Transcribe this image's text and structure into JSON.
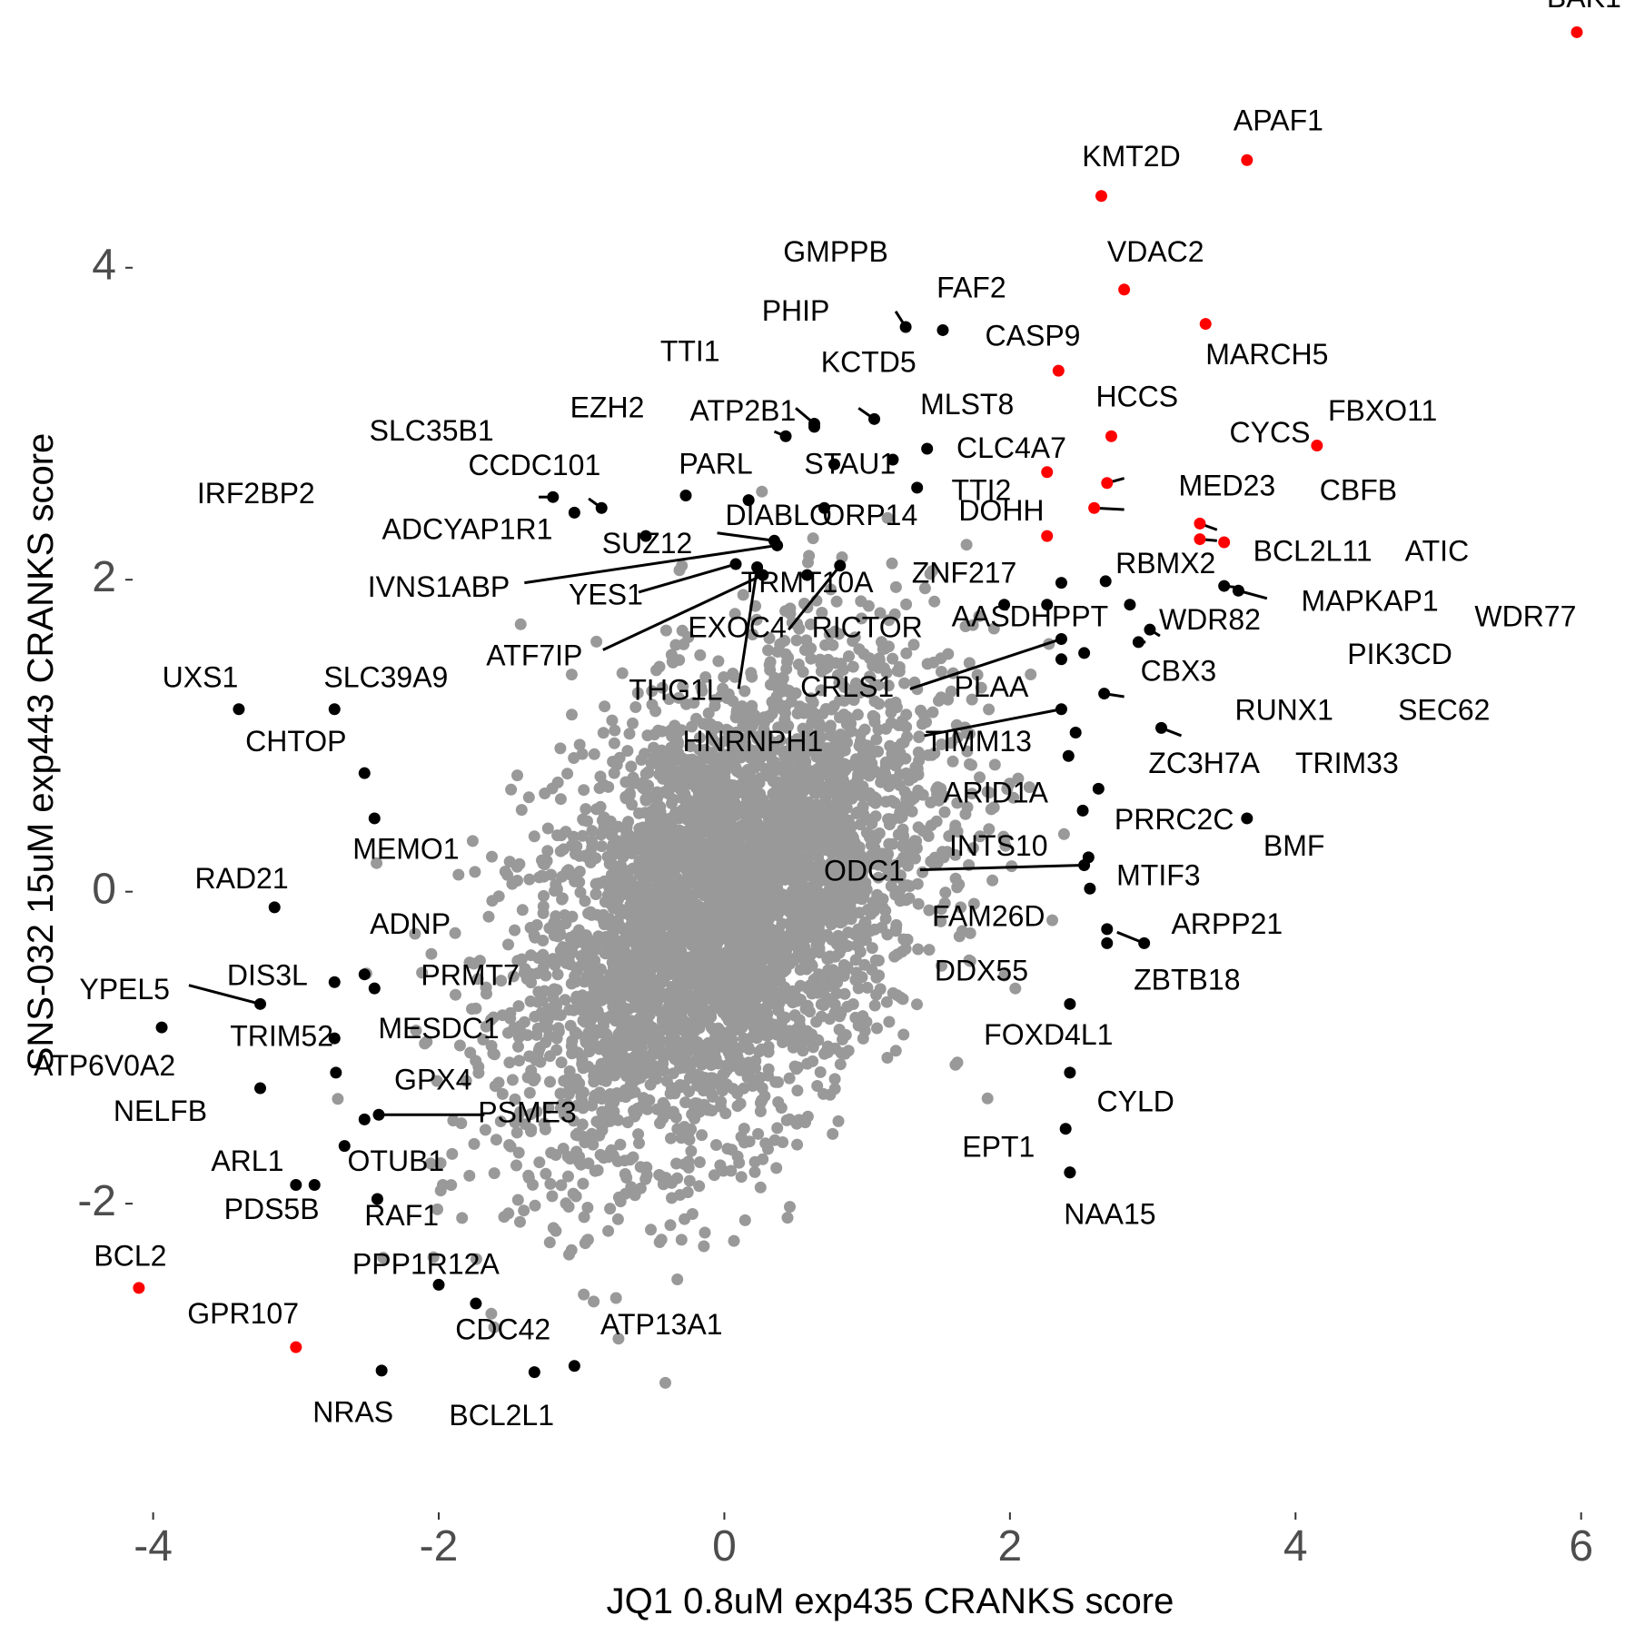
{
  "chart_data": {
    "type": "scatter",
    "xlabel": "JQ1 0.8uM exp435 CRANKS score",
    "ylabel": "SNS-032 15uM exp443 CRANKS score",
    "xlim": [
      -4.5,
      6.25
    ],
    "ylim": [
      -3.95,
      5.6
    ],
    "x_ticks": [
      {
        "value": -4,
        "label": "-4"
      },
      {
        "value": -2,
        "label": "-2"
      },
      {
        "value": 0,
        "label": "0"
      },
      {
        "value": 2,
        "label": "2"
      },
      {
        "value": 4,
        "label": "4"
      },
      {
        "value": 6,
        "label": "6"
      }
    ],
    "y_ticks": [
      {
        "value": -2,
        "label": "-2"
      },
      {
        "value": 0,
        "label": "0"
      },
      {
        "value": 2,
        "label": "2"
      },
      {
        "value": 4,
        "label": "4"
      }
    ],
    "grid": false,
    "legend": "none",
    "colors": {
      "background_points": "#999999",
      "highlight": "#ff0000",
      "labeled": "#000000"
    },
    "background_cloud": {
      "x_center": 0.0,
      "y_center": -0.1,
      "x_spread": 1.0,
      "y_spread": 1.1,
      "correlation": 0.45
    },
    "points": [
      {
        "label": "BAK1",
        "x": 5.97,
        "y": 5.51,
        "color": "red",
        "lx": 6.02,
        "ly": 5.72
      },
      {
        "label": "APAF1",
        "x": 3.66,
        "y": 4.69,
        "color": "red",
        "lx": 3.88,
        "ly": 4.93
      },
      {
        "label": "KMT2D",
        "x": 2.64,
        "y": 4.46,
        "color": "red",
        "lx": 2.85,
        "ly": 4.7
      },
      {
        "label": "VDAC2",
        "x": 2.8,
        "y": 3.86,
        "color": "red",
        "lx": 3.02,
        "ly": 4.09
      },
      {
        "label": "MARCH5",
        "x": 3.37,
        "y": 3.64,
        "color": "red",
        "lx": 3.8,
        "ly": 3.43
      },
      {
        "label": "CASP9",
        "x": 2.34,
        "y": 3.34,
        "color": "red",
        "lx": 2.16,
        "ly": 3.55
      },
      {
        "label": "HCCS",
        "x": 2.71,
        "y": 2.92,
        "color": "red",
        "lx": 2.89,
        "ly": 3.16
      },
      {
        "label": "FBXO11",
        "x": 4.15,
        "y": 2.86,
        "color": "red",
        "lx": 4.61,
        "ly": 3.07
      },
      {
        "label": "CYCS",
        "x": 2.68,
        "y": 2.62,
        "color": "red",
        "lx": 3.82,
        "ly": 2.93,
        "ax": 2.8,
        "ay": 2.65
      },
      {
        "label": "CLC4A7",
        "x": 2.26,
        "y": 2.69,
        "color": "red",
        "lx": 2.01,
        "ly": 2.83
      },
      {
        "label": "MED23",
        "x": 2.59,
        "y": 2.46,
        "color": "red",
        "lx": 3.52,
        "ly": 2.59,
        "ax": 2.8,
        "ay": 2.45
      },
      {
        "label": "CBFB",
        "x": 3.33,
        "y": 2.36,
        "color": "red",
        "lx": 4.44,
        "ly": 2.56,
        "ax": 3.45,
        "ay": 2.32
      },
      {
        "label": "DOHH",
        "x": 2.26,
        "y": 2.28,
        "color": "red",
        "lx": 1.94,
        "ly": 2.43
      },
      {
        "label": "BCL2L11",
        "x": 3.5,
        "y": 2.24,
        "color": "red",
        "lx": 4.12,
        "ly": 2.17
      },
      {
        "label": "ATIC",
        "x": 3.33,
        "y": 2.26,
        "color": "red",
        "lx": 4.99,
        "ly": 2.17,
        "ax": 3.45,
        "ay": 2.25
      },
      {
        "label": "BCL2",
        "x": -4.1,
        "y": -2.54,
        "color": "red",
        "lx": -4.16,
        "ly": -2.35
      },
      {
        "label": "GPR107",
        "x": -3.0,
        "y": -2.92,
        "color": "red",
        "lx": -3.37,
        "ly": -2.72
      },
      {
        "label": "GMPPB",
        "x": 1.27,
        "y": 3.62,
        "color": "black",
        "lx": 0.78,
        "ly": 4.09,
        "ax": 1.2,
        "ay": 3.72
      },
      {
        "label": "FAF2",
        "x": 1.53,
        "y": 3.6,
        "color": "black",
        "lx": 1.73,
        "ly": 3.86
      },
      {
        "label": "PHIP",
        "x": 1.05,
        "y": 3.03,
        "color": "black",
        "lx": 0.5,
        "ly": 3.71,
        "ax": 0.94,
        "ay": 3.1
      },
      {
        "label": "TTI1",
        "x": 0.63,
        "y": 3.0,
        "color": "black",
        "lx": -0.24,
        "ly": 3.45,
        "ax": 0.5,
        "ay": 3.1
      },
      {
        "label": "KCTD5",
        "x": 1.18,
        "y": 2.77,
        "color": "black",
        "lx": 1.01,
        "ly": 3.38
      },
      {
        "label": "MLST8",
        "x": 1.42,
        "y": 2.84,
        "color": "black",
        "lx": 1.7,
        "ly": 3.11
      },
      {
        "label": "EZH2",
        "x": 0.43,
        "y": 2.92,
        "color": "black",
        "lx": -0.82,
        "ly": 3.09,
        "ax": 0.35,
        "ay": 2.95
      },
      {
        "label": "ATP2B1",
        "x": 0.63,
        "y": 2.98,
        "color": "black",
        "lx": 0.13,
        "ly": 3.07
      },
      {
        "label": "SLC35B1",
        "x": -0.86,
        "y": 2.46,
        "color": "black",
        "lx": -2.05,
        "ly": 2.94,
        "ax": -0.95,
        "ay": 2.52
      },
      {
        "label": "CCDC101",
        "x": -1.05,
        "y": 2.43,
        "color": "black",
        "lx": -1.33,
        "ly": 2.72
      },
      {
        "label": "PARL",
        "x": -0.27,
        "y": 2.54,
        "color": "black",
        "lx": -0.06,
        "ly": 2.73
      },
      {
        "label": "STAU1",
        "x": 0.77,
        "y": 2.74,
        "color": "black",
        "lx": 0.88,
        "ly": 2.73
      },
      {
        "label": "IRF2BP2",
        "x": -1.2,
        "y": 2.53,
        "color": "black",
        "lx": -3.28,
        "ly": 2.54,
        "ax": -1.3,
        "ay": 2.53
      },
      {
        "label": "TTI2",
        "x": 1.35,
        "y": 2.59,
        "color": "black",
        "lx": 1.8,
        "ly": 2.56
      },
      {
        "label": "ADCYAP1R1",
        "x": -0.55,
        "y": 2.28,
        "color": "black",
        "lx": -1.8,
        "ly": 2.31
      },
      {
        "label": "DIABLO",
        "x": 0.17,
        "y": 2.51,
        "color": "black",
        "lx": 0.38,
        "ly": 2.4
      },
      {
        "label": "ORP14",
        "x": 0.7,
        "y": 2.46,
        "color": "black",
        "lx": 1.02,
        "ly": 2.4
      },
      {
        "label": "SUZ12",
        "x": 0.35,
        "y": 2.25,
        "color": "black",
        "lx": -0.54,
        "ly": 2.22,
        "ax": -0.05,
        "ay": 2.3
      },
      {
        "label": "IVNS1ABP",
        "x": 0.37,
        "y": 2.22,
        "color": "black",
        "lx": -2.0,
        "ly": 1.94,
        "ax": -1.4,
        "ay": 1.98
      },
      {
        "label": "YES1",
        "x": 0.08,
        "y": 2.1,
        "color": "black",
        "lx": -0.83,
        "ly": 1.89,
        "ax": -0.6,
        "ay": 1.92
      },
      {
        "label": "ZNF217",
        "x": 2.36,
        "y": 1.98,
        "color": "black",
        "lx": 1.68,
        "ly": 2.03
      },
      {
        "label": "TRMT10A",
        "x": 0.58,
        "y": 2.03,
        "color": "black",
        "lx": 0.58,
        "ly": 1.97
      },
      {
        "label": "RBMX2",
        "x": 2.67,
        "y": 1.99,
        "color": "black",
        "lx": 3.09,
        "ly": 2.09
      },
      {
        "label": "ATF7IP",
        "x": 0.27,
        "y": 2.03,
        "color": "black",
        "lx": -1.33,
        "ly": 1.5,
        "ax": -0.85,
        "ay": 1.55
      },
      {
        "label": "EXOC4",
        "x": 0.81,
        "y": 2.09,
        "color": "black",
        "lx": 0.09,
        "ly": 1.68,
        "ax": 0.45,
        "ay": 1.68
      },
      {
        "label": "MAPKAP1",
        "x": 3.6,
        "y": 1.93,
        "color": "black",
        "lx": 4.52,
        "ly": 1.85,
        "ax": 3.8,
        "ay": 1.88
      },
      {
        "label": "RICTOR",
        "x": 1.96,
        "y": 1.84,
        "color": "black",
        "lx": 1.0,
        "ly": 1.68
      },
      {
        "label": "AASDHPPT",
        "x": 2.26,
        "y": 1.84,
        "color": "black",
        "lx": 2.14,
        "ly": 1.75
      },
      {
        "label": "WDR82",
        "x": 2.84,
        "y": 1.84,
        "color": "black",
        "lx": 3.4,
        "ly": 1.73
      },
      {
        "label": "WDR77",
        "x": 3.5,
        "y": 1.96,
        "color": "black",
        "lx": 5.61,
        "ly": 1.75,
        "ax": 3.6,
        "ay": 1.95
      },
      {
        "label": "THG1L",
        "x": 0.23,
        "y": 2.08,
        "color": "black",
        "lx": -0.34,
        "ly": 1.28,
        "ax": 0.1,
        "ay": 1.3
      },
      {
        "label": "PIK3CD",
        "x": 2.98,
        "y": 1.68,
        "color": "black",
        "lx": 4.73,
        "ly": 1.51,
        "ax": 3.05,
        "ay": 1.64
      },
      {
        "label": "CBX3",
        "x": 2.52,
        "y": 1.53,
        "color": "black",
        "lx": 3.18,
        "ly": 1.4
      },
      {
        "label": "CRLS1",
        "x": 2.36,
        "y": 1.62,
        "color": "black",
        "lx": 0.86,
        "ly": 1.3,
        "ax": 1.3,
        "ay": 1.3
      },
      {
        "label": "PLAA",
        "x": 2.36,
        "y": 1.49,
        "color": "black",
        "lx": 1.87,
        "ly": 1.3
      },
      {
        "label": "SEC62",
        "x": 2.9,
        "y": 1.6,
        "color": "black",
        "lx": 5.04,
        "ly": 1.15,
        "ax": 2.95,
        "ay": 1.6
      },
      {
        "label": "RUNX1",
        "x": 2.66,
        "y": 1.27,
        "color": "black",
        "lx": 3.92,
        "ly": 1.15,
        "ax": 2.8,
        "ay": 1.25
      },
      {
        "label": "HNRNPH1",
        "x": 2.36,
        "y": 1.17,
        "color": "black",
        "lx": 0.2,
        "ly": 0.95,
        "ax": 1.4,
        "ay": 1.0
      },
      {
        "label": "TIMM13",
        "x": 2.46,
        "y": 1.02,
        "color": "black",
        "lx": 1.78,
        "ly": 0.95
      },
      {
        "label": "ZC3H7A",
        "x": 2.41,
        "y": 0.87,
        "color": "black",
        "lx": 3.36,
        "ly": 0.81
      },
      {
        "label": "TRIM33",
        "x": 3.06,
        "y": 1.05,
        "color": "black",
        "lx": 4.36,
        "ly": 0.81,
        "ax": 3.2,
        "ay": 1.0
      },
      {
        "label": "ARID1A",
        "x": 2.62,
        "y": 0.66,
        "color": "black",
        "lx": 1.9,
        "ly": 0.62
      },
      {
        "label": "PRRC2C",
        "x": 2.51,
        "y": 0.52,
        "color": "black",
        "lx": 3.15,
        "ly": 0.45
      },
      {
        "label": "BMF",
        "x": 3.66,
        "y": 0.47,
        "color": "black",
        "lx": 3.99,
        "ly": 0.28
      },
      {
        "label": "INTS10",
        "x": 2.55,
        "y": 0.22,
        "color": "black",
        "lx": 1.92,
        "ly": 0.28
      },
      {
        "label": "ODC1",
        "x": 2.52,
        "y": 0.17,
        "color": "black",
        "lx": 0.98,
        "ly": 0.12,
        "ax": 1.37,
        "ay": 0.14
      },
      {
        "label": "MTIF3",
        "x": 2.56,
        "y": 0.02,
        "color": "black",
        "lx": 3.04,
        "ly": 0.09
      },
      {
        "label": "FAM26D",
        "x": 2.68,
        "y": -0.24,
        "color": "black",
        "lx": 1.85,
        "ly": -0.17
      },
      {
        "label": "ARPP21",
        "x": 2.94,
        "y": -0.33,
        "color": "black",
        "lx": 3.52,
        "ly": -0.22,
        "ax": 2.75,
        "ay": -0.26
      },
      {
        "label": "ZBTB18",
        "x": 2.68,
        "y": -0.33,
        "color": "black",
        "lx": 3.24,
        "ly": -0.58
      },
      {
        "label": "DDX55",
        "x": 2.42,
        "y": -0.72,
        "color": "black",
        "lx": 1.8,
        "ly": -0.52
      },
      {
        "label": "FOXD4L1",
        "x": 2.42,
        "y": -1.16,
        "color": "black",
        "lx": 2.27,
        "ly": -0.93
      },
      {
        "label": "CYLD",
        "x": 2.39,
        "y": -1.52,
        "color": "black",
        "lx": 2.88,
        "ly": -1.36
      },
      {
        "label": "EPT1",
        "x": 2.42,
        "y": -1.8,
        "color": "black",
        "lx": 1.92,
        "ly": -1.65
      },
      {
        "label": "NAA15",
        "x": 2.42,
        "y": -1.8,
        "color": "black",
        "lx": 2.7,
        "ly": -2.08
      },
      {
        "label": "UXS1",
        "x": -3.4,
        "y": 1.17,
        "color": "black",
        "lx": -3.67,
        "ly": 1.36
      },
      {
        "label": "SLC39A9",
        "x": -2.73,
        "y": 1.17,
        "color": "black",
        "lx": -2.37,
        "ly": 1.36
      },
      {
        "label": "CHTOP",
        "x": -2.52,
        "y": 0.76,
        "color": "black",
        "lx": -3.0,
        "ly": 0.95
      },
      {
        "label": "MEMO1",
        "x": -2.45,
        "y": 0.47,
        "color": "black",
        "lx": -2.23,
        "ly": 0.26
      },
      {
        "label": "RAD21",
        "x": -3.15,
        "y": -0.1,
        "color": "black",
        "lx": -3.38,
        "ly": 0.07
      },
      {
        "label": "ADNP",
        "x": -2.52,
        "y": -0.53,
        "color": "black",
        "lx": -2.2,
        "ly": -0.22
      },
      {
        "label": "YPEL5",
        "x": -3.25,
        "y": -0.72,
        "color": "black",
        "lx": -4.2,
        "ly": -0.64,
        "ax": -3.75,
        "ay": -0.6
      },
      {
        "label": "DIS3L",
        "x": -2.73,
        "y": -0.58,
        "color": "black",
        "lx": -3.2,
        "ly": -0.55
      },
      {
        "label": "PRMT7",
        "x": -2.45,
        "y": -0.62,
        "color": "black",
        "lx": -1.78,
        "ly": -0.55
      },
      {
        "label": "ATP6V0A2",
        "x": -3.94,
        "y": -0.87,
        "color": "black",
        "lx": -4.34,
        "ly": -1.13
      },
      {
        "label": "TRIM52",
        "x": -2.73,
        "y": -0.94,
        "color": "black",
        "lx": -3.1,
        "ly": -0.94
      },
      {
        "label": "MESDC1",
        "x": -2.72,
        "y": -1.16,
        "color": "black",
        "lx": -2.0,
        "ly": -0.89
      },
      {
        "label": "NELFB",
        "x": -3.25,
        "y": -1.26,
        "color": "black",
        "lx": -3.95,
        "ly": -1.42
      },
      {
        "label": "GPX4",
        "x": -2.52,
        "y": -1.46,
        "color": "black",
        "lx": -2.04,
        "ly": -1.22
      },
      {
        "label": "PSME3",
        "x": -2.42,
        "y": -1.43,
        "color": "black",
        "lx": -1.38,
        "ly": -1.43,
        "ax": -1.68,
        "ay": -1.43
      },
      {
        "label": "ARL1",
        "x": -2.87,
        "y": -1.88,
        "color": "black",
        "lx": -3.34,
        "ly": -1.74
      },
      {
        "label": "OTUB1",
        "x": -2.66,
        "y": -1.63,
        "color": "black",
        "lx": -2.3,
        "ly": -1.74
      },
      {
        "label": "PDS5B",
        "x": -3.0,
        "y": -1.88,
        "color": "black",
        "lx": -3.17,
        "ly": -2.05
      },
      {
        "label": "RAF1",
        "x": -2.43,
        "y": -1.97,
        "color": "black",
        "lx": -2.26,
        "ly": -2.09
      },
      {
        "label": "PPP1R12A",
        "x": -2.0,
        "y": -2.52,
        "color": "black",
        "lx": -2.09,
        "ly": -2.4
      },
      {
        "label": "CDC42",
        "x": -1.74,
        "y": -2.64,
        "color": "black",
        "lx": -1.55,
        "ly": -2.82
      },
      {
        "label": "ATP13A1",
        "x": -1.05,
        "y": -3.04,
        "color": "black",
        "lx": -0.44,
        "ly": -2.79
      },
      {
        "label": "NRAS",
        "x": -2.4,
        "y": -3.07,
        "color": "black",
        "lx": -2.6,
        "ly": -3.35
      },
      {
        "label": "BCL2L1",
        "x": -1.33,
        "y": -3.08,
        "color": "black",
        "lx": -1.56,
        "ly": -3.37
      }
    ]
  }
}
